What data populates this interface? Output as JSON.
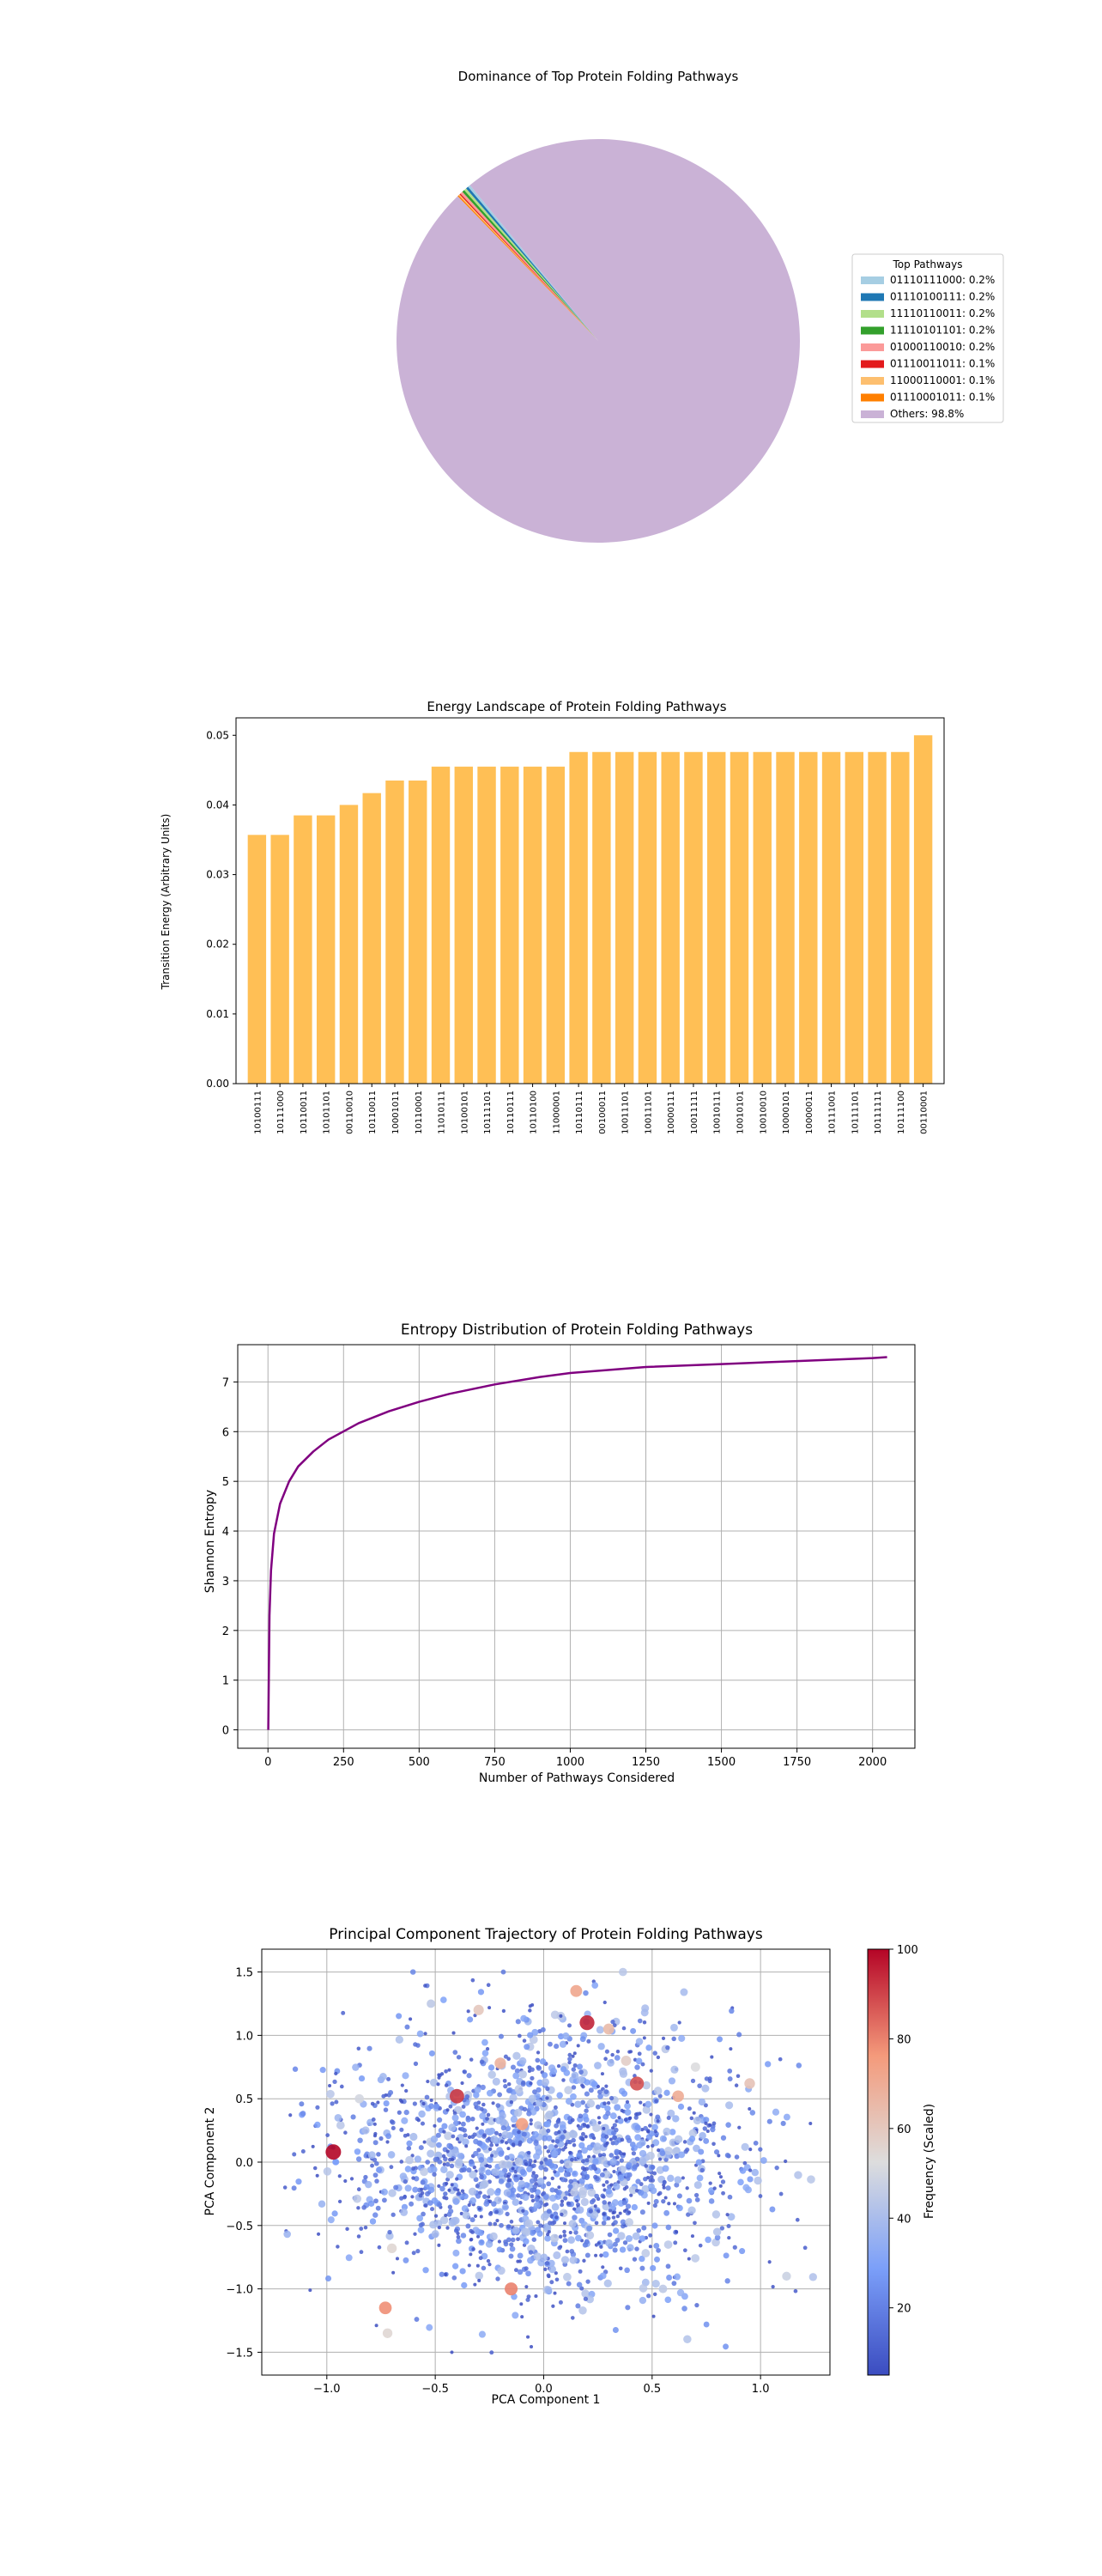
{
  "chart_data": [
    {
      "type": "pie",
      "title": "Dominance of Top Protein Folding Pathways",
      "legend_title": "Top Pathways",
      "legend_position": "right",
      "slices": [
        {
          "label": "01110111000: 0.2%",
          "value": 0.2,
          "color": "#a6cee3"
        },
        {
          "label": "01110100111: 0.2%",
          "value": 0.2,
          "color": "#1f78b4"
        },
        {
          "label": "11110110011: 0.2%",
          "value": 0.2,
          "color": "#b2df8a"
        },
        {
          "label": "11110101101: 0.2%",
          "value": 0.2,
          "color": "#33a02c"
        },
        {
          "label": "01000110010: 0.2%",
          "value": 0.2,
          "color": "#fb9a99"
        },
        {
          "label": "01110011011: 0.1%",
          "value": 0.1,
          "color": "#e31a1c"
        },
        {
          "label": "11000110001: 0.1%",
          "value": 0.1,
          "color": "#fdbf6f"
        },
        {
          "label": "01110001011: 0.1%",
          "value": 0.1,
          "color": "#ff7f00"
        },
        {
          "label": "Others: 98.8%",
          "value": 98.8,
          "color": "#cab2d6"
        }
      ]
    },
    {
      "type": "bar",
      "title": "Energy Landscape of Protein Folding Pathways",
      "xlabel": "",
      "ylabel": "Transition Energy (Arbitrary Units)",
      "ylim": [
        0,
        0.0525
      ],
      "yticks": [
        0.0,
        0.01,
        0.02,
        0.03,
        0.04,
        0.05
      ],
      "ytick_labels": [
        "0.00",
        "0.01",
        "0.02",
        "0.03",
        "0.04",
        "0.05"
      ],
      "bar_color": "#ffbf55",
      "categories": [
        "10100111",
        "10111000",
        "10110011",
        "10101101",
        "00110010",
        "10110011",
        "10001011",
        "10110001",
        "11010111",
        "10100101",
        "10111101",
        "10110111",
        "10110100",
        "11000001",
        "10110111",
        "00100011",
        "10011101",
        "10011101",
        "10000111",
        "10011111",
        "10010111",
        "10010101",
        "10010010",
        "10000101",
        "10000011",
        "10111001",
        "10111101",
        "10111111",
        "10111100",
        "00110001"
      ],
      "values": [
        0.0357,
        0.0357,
        0.0385,
        0.0385,
        0.04,
        0.0417,
        0.0435,
        0.0435,
        0.0455,
        0.0455,
        0.0455,
        0.0455,
        0.0455,
        0.0455,
        0.0476,
        0.0476,
        0.0476,
        0.0476,
        0.0476,
        0.0476,
        0.0476,
        0.0476,
        0.0476,
        0.0476,
        0.0476,
        0.0476,
        0.0476,
        0.0476,
        0.0476,
        0.05
      ]
    },
    {
      "type": "line",
      "title": "Entropy Distribution of Protein Folding Pathways",
      "xlabel": "Number of Pathways Considered",
      "ylabel": "Shannon Entropy",
      "xlim": [
        -100,
        2140
      ],
      "ylim": [
        -0.37,
        7.75
      ],
      "xticks": [
        0,
        250,
        500,
        750,
        1000,
        1250,
        1500,
        1750,
        2000
      ],
      "yticks": [
        0,
        1,
        2,
        3,
        4,
        5,
        6,
        7
      ],
      "grid": true,
      "line_color": "#800080",
      "x": [
        1,
        5,
        10,
        20,
        40,
        70,
        100,
        150,
        200,
        300,
        400,
        500,
        600,
        750,
        900,
        1000,
        1250,
        1500,
        1750,
        2000,
        2048
      ],
      "y": [
        0.0,
        2.3,
        3.2,
        3.95,
        4.55,
        5.0,
        5.3,
        5.6,
        5.84,
        6.17,
        6.41,
        6.6,
        6.76,
        6.95,
        7.1,
        7.18,
        7.3,
        7.36,
        7.42,
        7.48,
        7.5
      ]
    },
    {
      "type": "scatter",
      "title": "Principal Component Trajectory of Protein Folding Pathways",
      "xlabel": "PCA Component 1",
      "ylabel": "PCA Component 2",
      "xlim": [
        -1.3,
        1.32
      ],
      "ylim": [
        -1.68,
        1.68
      ],
      "xticks": [
        -1.0,
        -0.5,
        0.0,
        0.5,
        1.0
      ],
      "xtick_labels": [
        "−1.0",
        "−0.5",
        "0.0",
        "0.5",
        "1.0"
      ],
      "yticks": [
        -1.5,
        -1.0,
        -0.5,
        0.0,
        0.5,
        1.0,
        1.5
      ],
      "ytick_labels": [
        "−1.5",
        "−1.0",
        "−0.5",
        "0.0",
        "0.5",
        "1.0",
        "1.5"
      ],
      "grid": true,
      "colormap": "coolwarm",
      "colorbar_label": "Frequency (Scaled)",
      "colorbar_range": [
        5,
        100
      ],
      "colorbar_ticks": [
        20,
        40,
        60,
        80,
        100
      ],
      "points": [
        {
          "x": -0.97,
          "y": 0.08,
          "v": 100
        },
        {
          "x": 0.2,
          "y": 1.1,
          "v": 95
        },
        {
          "x": -0.4,
          "y": 0.52,
          "v": 92
        },
        {
          "x": 0.43,
          "y": 0.62,
          "v": 88
        },
        {
          "x": -0.15,
          "y": -1.0,
          "v": 80
        },
        {
          "x": -0.73,
          "y": -1.15,
          "v": 78
        },
        {
          "x": 0.15,
          "y": 1.35,
          "v": 72
        },
        {
          "x": 0.62,
          "y": 0.52,
          "v": 70
        },
        {
          "x": -0.1,
          "y": 0.3,
          "v": 75
        },
        {
          "x": -0.2,
          "y": 0.78,
          "v": 68
        },
        {
          "x": 0.3,
          "y": 1.05,
          "v": 65
        },
        {
          "x": 0.95,
          "y": 0.62,
          "v": 62
        },
        {
          "x": -0.3,
          "y": 1.2,
          "v": 60
        },
        {
          "x": 0.38,
          "y": 0.8,
          "v": 58
        },
        {
          "x": -0.7,
          "y": -0.68,
          "v": 55
        },
        {
          "x": -0.72,
          "y": -1.35,
          "v": 55
        },
        {
          "x": 1.12,
          "y": -0.9,
          "v": 48
        },
        {
          "x": 0.55,
          "y": -1.0,
          "v": 45
        },
        {
          "x": -0.52,
          "y": 1.25,
          "v": 45
        },
        {
          "x": 0.7,
          "y": 0.75,
          "v": 52
        },
        {
          "x": -0.85,
          "y": 0.5,
          "v": 50
        },
        {
          "x": 0.05,
          "y": -0.6,
          "v": 45
        },
        {
          "x": 0.8,
          "y": -0.55,
          "v": 42
        },
        {
          "x": -0.6,
          "y": 0.2,
          "v": 40
        }
      ],
      "background_points": {
        "count": 1900,
        "x_spread": 0.45,
        "y_spread": 0.5,
        "value_range": [
          5,
          45
        ],
        "seed": 7
      }
    }
  ]
}
